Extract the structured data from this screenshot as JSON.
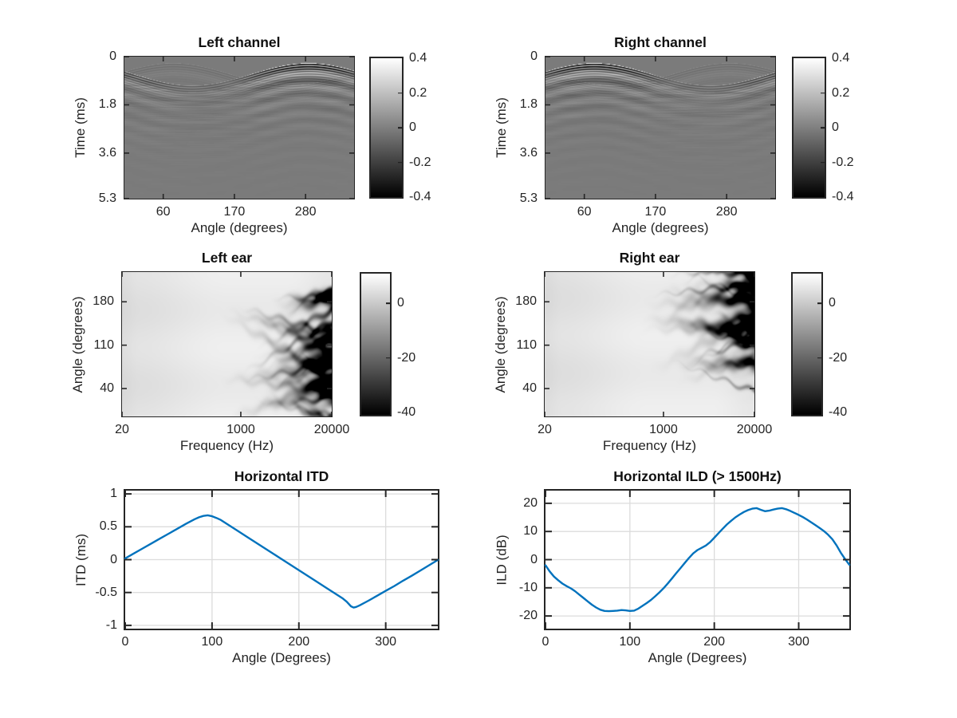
{
  "figure": {
    "background": "#ffffff",
    "axis_color": "#262626",
    "grid_color": "#dcdcdc",
    "line_color": "#0072bd",
    "heat_mid_gray": "#7b7b7b"
  },
  "chart_data": [
    {
      "id": "left-channel",
      "type": "heatmap",
      "title": "Left channel",
      "xlabel": "Angle (degrees)",
      "ylabel": "Time (ms)",
      "x_scale": "linear",
      "x_range": [
        0,
        355
      ],
      "y_range": [
        0,
        5.3
      ],
      "y_up": false,
      "xticks": {
        "values": [
          60,
          170,
          280
        ],
        "labels": [
          "60",
          "170",
          "280"
        ]
      },
      "yticks": {
        "values": [
          0,
          1.8,
          3.6,
          5.3
        ],
        "labels": [
          "0",
          "1.8",
          "3.6",
          "5.3"
        ]
      },
      "colorbar": {
        "range": [
          0.4,
          -0.4
        ],
        "ticks": {
          "values": [
            0.4,
            0.2,
            0,
            -0.2,
            -0.4
          ],
          "labels": [
            "0.4",
            "0.2",
            "0",
            "-0.2",
            "-0.4"
          ]
        }
      },
      "description": "Head-related impulse responses vs source angle. Direct-sound ridge arrives latest (~1.07 ms) near 105 deg and earliest (~0.24 ms) near 270 deg; strong oscillatory ringing for angles 180-355 deg, faint mirrored branch crossing near 95 deg.",
      "render": {
        "kind": "ir",
        "mirror": false,
        "t_base": 0.65,
        "t_amp": 0.42,
        "t_phase_deg": 15,
        "seed": 3
      }
    },
    {
      "id": "right-channel",
      "type": "heatmap",
      "title": "Right channel",
      "xlabel": "Angle (degrees)",
      "ylabel": "Time (ms)",
      "x_scale": "linear",
      "x_range": [
        0,
        355
      ],
      "y_range": [
        0,
        5.3
      ],
      "y_up": false,
      "xticks": {
        "values": [
          60,
          170,
          280
        ],
        "labels": [
          "60",
          "170",
          "280"
        ]
      },
      "yticks": {
        "values": [
          0,
          1.8,
          3.6,
          5.3
        ],
        "labels": [
          "0",
          "1.8",
          "3.6",
          "5.3"
        ]
      },
      "colorbar": {
        "range": [
          0.4,
          -0.4
        ],
        "ticks": {
          "values": [
            0.4,
            0.2,
            0,
            -0.2,
            -0.4
          ],
          "labels": [
            "0.4",
            "0.2",
            "0",
            "-0.2",
            "-0.4"
          ]
        }
      },
      "description": "Mirror image of left channel: ridge earliest (~0.24 ms) near 90 deg with strong ringing for angles 0-170 deg, latest (~1.07 ms) near 255 deg.",
      "render": {
        "kind": "ir",
        "mirror": true,
        "t_base": 0.65,
        "t_amp": 0.42,
        "t_phase_deg": 15,
        "seed": 4
      }
    },
    {
      "id": "left-ear",
      "type": "heatmap",
      "title": "Left ear",
      "xlabel": "Frequency (Hz)",
      "ylabel": "Angle (degrees)",
      "x_scale": "log",
      "x_range": [
        20,
        20000
      ],
      "y_range": [
        -5,
        228
      ],
      "y_up": true,
      "xticks": {
        "values": [
          20,
          1000,
          20000
        ],
        "labels": [
          "20",
          "1000",
          "20000"
        ]
      },
      "yticks": {
        "values": [
          40,
          110,
          180
        ],
        "labels": [
          "40",
          "110",
          "180"
        ]
      },
      "colorbar": {
        "range": [
          11,
          -41
        ],
        "ticks": {
          "values": [
            0,
            -20,
            -40
          ],
          "labels": [
            "0",
            "-20",
            "-40"
          ]
        }
      },
      "description": "HRTF magnitude (dB) vs frequency and angle. Nearly flat light field below ~1 kHz; deep dark spectral notches fan out above ~2 kHz, concentrated around 65 deg and across all angles near 20 kHz.",
      "render": {
        "kind": "mag",
        "pivot": 0.7,
        "seed": 11
      }
    },
    {
      "id": "right-ear",
      "type": "heatmap",
      "title": "Right ear",
      "xlabel": "Frequency (Hz)",
      "ylabel": "Angle (degrees)",
      "x_scale": "log",
      "x_range": [
        20,
        20000
      ],
      "y_range": [
        -5,
        228
      ],
      "y_up": true,
      "xticks": {
        "values": [
          20,
          1000,
          20000
        ],
        "labels": [
          "20",
          "1000",
          "20000"
        ]
      },
      "yticks": {
        "values": [
          40,
          110,
          180
        ],
        "labels": [
          "40",
          "110",
          "180"
        ]
      },
      "colorbar": {
        "range": [
          11,
          -41
        ],
        "ticks": {
          "values": [
            0,
            -20,
            -40
          ],
          "labels": [
            "0",
            "-20",
            "-40"
          ]
        }
      },
      "description": "Mirror of left ear: notch fan concentrated around 160 deg at high frequencies.",
      "render": {
        "kind": "mag",
        "pivot": 0.29,
        "seed": 12
      }
    },
    {
      "id": "horizontal-itd",
      "type": "line",
      "title": "Horizontal ITD",
      "xlabel": "Angle (Degrees)",
      "ylabel": "ITD (ms)",
      "x_scale": "linear",
      "x_range": [
        0,
        360
      ],
      "y_range": [
        -1.05,
        1.05
      ],
      "y_up": true,
      "grid": true,
      "xticks": {
        "values": [
          0,
          100,
          200,
          300
        ],
        "labels": [
          "0",
          "100",
          "200",
          "300"
        ]
      },
      "yticks": {
        "values": [
          1,
          0.5,
          0,
          -0.5,
          -1
        ],
        "labels": [
          "1",
          "0.5",
          "0",
          "-0.5",
          "-1"
        ]
      },
      "series": [
        {
          "name": "ITD",
          "points": [
            [
              0,
              0.02
            ],
            [
              10,
              0.095
            ],
            [
              20,
              0.17
            ],
            [
              30,
              0.245
            ],
            [
              40,
              0.32
            ],
            [
              50,
              0.395
            ],
            [
              60,
              0.47
            ],
            [
              70,
              0.545
            ],
            [
              80,
              0.615
            ],
            [
              85,
              0.645
            ],
            [
              90,
              0.665
            ],
            [
              95,
              0.675
            ],
            [
              100,
              0.66
            ],
            [
              105,
              0.635
            ],
            [
              110,
              0.605
            ],
            [
              120,
              0.52
            ],
            [
              130,
              0.435
            ],
            [
              140,
              0.35
            ],
            [
              150,
              0.265
            ],
            [
              160,
              0.18
            ],
            [
              170,
              0.095
            ],
            [
              180,
              0.01
            ],
            [
              190,
              -0.075
            ],
            [
              200,
              -0.16
            ],
            [
              210,
              -0.245
            ],
            [
              220,
              -0.33
            ],
            [
              230,
              -0.415
            ],
            [
              240,
              -0.5
            ],
            [
              250,
              -0.585
            ],
            [
              255,
              -0.64
            ],
            [
              260,
              -0.71
            ],
            [
              263,
              -0.73
            ],
            [
              266,
              -0.72
            ],
            [
              270,
              -0.695
            ],
            [
              280,
              -0.625
            ],
            [
              290,
              -0.55
            ],
            [
              300,
              -0.475
            ],
            [
              310,
              -0.4
            ],
            [
              320,
              -0.32
            ],
            [
              330,
              -0.245
            ],
            [
              340,
              -0.165
            ],
            [
              350,
              -0.085
            ],
            [
              360,
              -0.005
            ]
          ]
        }
      ]
    },
    {
      "id": "horizontal-ild",
      "type": "line",
      "title": "Horizontal ILD (> 1500Hz)",
      "xlabel": "Angle (Degrees)",
      "ylabel": "ILD (dB)",
      "x_scale": "linear",
      "x_range": [
        0,
        360
      ],
      "y_range": [
        -24.5,
        24.5
      ],
      "y_up": true,
      "grid": true,
      "xticks": {
        "values": [
          0,
          100,
          200,
          300
        ],
        "labels": [
          "0",
          "100",
          "200",
          "300"
        ]
      },
      "yticks": {
        "values": [
          20,
          10,
          0,
          -10,
          -20
        ],
        "labels": [
          "20",
          "10",
          "0",
          "-10",
          "-20"
        ]
      },
      "series": [
        {
          "name": "ILD",
          "points": [
            [
              0,
              -2
            ],
            [
              5,
              -4.2
            ],
            [
              10,
              -6
            ],
            [
              15,
              -7.3
            ],
            [
              20,
              -8.5
            ],
            [
              25,
              -9.4
            ],
            [
              30,
              -10.2
            ],
            [
              35,
              -11.2
            ],
            [
              40,
              -12.4
            ],
            [
              45,
              -13.6
            ],
            [
              50,
              -14.8
            ],
            [
              55,
              -16
            ],
            [
              60,
              -17
            ],
            [
              65,
              -17.8
            ],
            [
              70,
              -18.2
            ],
            [
              75,
              -18.3
            ],
            [
              80,
              -18.2
            ],
            [
              85,
              -18.1
            ],
            [
              90,
              -17.9
            ],
            [
              95,
              -18
            ],
            [
              100,
              -18.2
            ],
            [
              105,
              -18.1
            ],
            [
              110,
              -17.4
            ],
            [
              115,
              -16.4
            ],
            [
              120,
              -15.4
            ],
            [
              125,
              -14.3
            ],
            [
              130,
              -13
            ],
            [
              135,
              -11.6
            ],
            [
              140,
              -10.1
            ],
            [
              145,
              -8.4
            ],
            [
              150,
              -6.6
            ],
            [
              155,
              -4.8
            ],
            [
              160,
              -3
            ],
            [
              165,
              -1.2
            ],
            [
              170,
              0.6
            ],
            [
              175,
              2.2
            ],
            [
              180,
              3.4
            ],
            [
              185,
              4.2
            ],
            [
              190,
              5
            ],
            [
              195,
              6.2
            ],
            [
              200,
              7.8
            ],
            [
              205,
              9.4
            ],
            [
              210,
              11
            ],
            [
              215,
              12.5
            ],
            [
              220,
              13.8
            ],
            [
              225,
              15
            ],
            [
              230,
              16
            ],
            [
              235,
              16.9
            ],
            [
              240,
              17.6
            ],
            [
              245,
              18.1
            ],
            [
              250,
              18.3
            ],
            [
              255,
              17.7
            ],
            [
              260,
              17.2
            ],
            [
              265,
              17.4
            ],
            [
              270,
              17.8
            ],
            [
              275,
              18.1
            ],
            [
              280,
              18.3
            ],
            [
              285,
              17.9
            ],
            [
              290,
              17.3
            ],
            [
              295,
              16.6
            ],
            [
              300,
              15.9
            ],
            [
              305,
              15.1
            ],
            [
              310,
              14.2
            ],
            [
              315,
              13.2
            ],
            [
              320,
              12.2
            ],
            [
              325,
              11.2
            ],
            [
              330,
              10.1
            ],
            [
              335,
              8.8
            ],
            [
              340,
              7.2
            ],
            [
              345,
              5
            ],
            [
              350,
              2.4
            ],
            [
              355,
              0.2
            ],
            [
              360,
              -1.8
            ]
          ]
        }
      ]
    }
  ]
}
